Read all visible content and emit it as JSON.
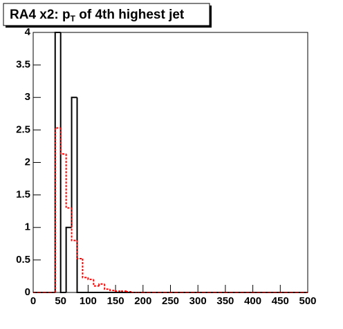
{
  "chart_data": {
    "type": "histogram",
    "title_prefix": "RA4 x2: p",
    "title_subscript": "T",
    "title_suffix": " of 4th highest jet",
    "bins": [
      0,
      10,
      20,
      30,
      40,
      50,
      60,
      70,
      80,
      90,
      100,
      110,
      120,
      130,
      140,
      150,
      160,
      170,
      180,
      190,
      200,
      210,
      220,
      230,
      240,
      250,
      260,
      270,
      280,
      290,
      300,
      310,
      320,
      330,
      340,
      350,
      360,
      370,
      380,
      390,
      400,
      410,
      420,
      430,
      440,
      450,
      460,
      470,
      480,
      490,
      500
    ],
    "series": [
      {
        "color": "#000000",
        "line_style": "solid",
        "values": [
          0,
          0,
          0,
          0,
          4,
          0,
          1,
          3,
          0,
          0,
          0,
          0,
          0,
          0,
          0,
          0,
          0,
          0,
          0,
          0,
          0,
          0,
          0,
          0,
          0,
          0,
          0,
          0,
          0,
          0,
          0,
          0,
          0,
          0,
          0,
          0,
          0,
          0,
          0,
          0,
          0,
          0,
          0,
          0,
          0,
          0,
          0,
          0,
          0,
          0
        ]
      },
      {
        "color": "#ff0000",
        "line_style": "dashed",
        "values": [
          0,
          0,
          0,
          0,
          2.53,
          2.13,
          1.3,
          0.8,
          0.52,
          0.23,
          0.2,
          0.1,
          0.13,
          0.05,
          0.03,
          0.02,
          0.02,
          0.01,
          0,
          0,
          0,
          0,
          0,
          0,
          0,
          0,
          0,
          0,
          0,
          0,
          0,
          0,
          0,
          0,
          0,
          0,
          0,
          0,
          0,
          0,
          0,
          0,
          0,
          0,
          0,
          0,
          0,
          0,
          0,
          0
        ]
      }
    ],
    "xlim": [
      0,
      500
    ],
    "xticks": [
      0,
      50,
      100,
      150,
      200,
      250,
      300,
      350,
      400,
      450,
      500
    ],
    "ylim": [
      0,
      4
    ],
    "yticks": [
      0,
      0.5,
      1,
      1.5,
      2,
      2.5,
      3,
      3.5,
      4
    ]
  }
}
